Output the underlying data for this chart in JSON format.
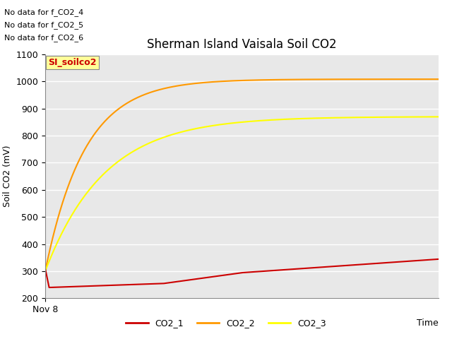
{
  "title": "Sherman Island Vaisala Soil CO2",
  "ylabel": "Soil CO2 (mV)",
  "xlabel": "Time",
  "ylim": [
    200,
    1100
  ],
  "yticks": [
    200,
    300,
    400,
    500,
    600,
    700,
    800,
    900,
    1000,
    1100
  ],
  "xticklabels": [
    "Nov 8"
  ],
  "no_data_lines": [
    "No data for f_CO2_4",
    "No data for f_CO2_5",
    "No data for f_CO2_6"
  ],
  "tooltip_text": "SI_soilco2",
  "tooltip_color": "#cc0000",
  "tooltip_bg": "#ffff99",
  "bg_color": "#e8e8e8",
  "line_colors": {
    "CO2_1": "#cc0000",
    "CO2_2": "#ff9900",
    "CO2_3": "#ffff00"
  },
  "grid_color": "#ffffff",
  "figure_bg": "#ffffff",
  "title_fontsize": 12,
  "axis_fontsize": 9,
  "legend_fontsize": 9
}
